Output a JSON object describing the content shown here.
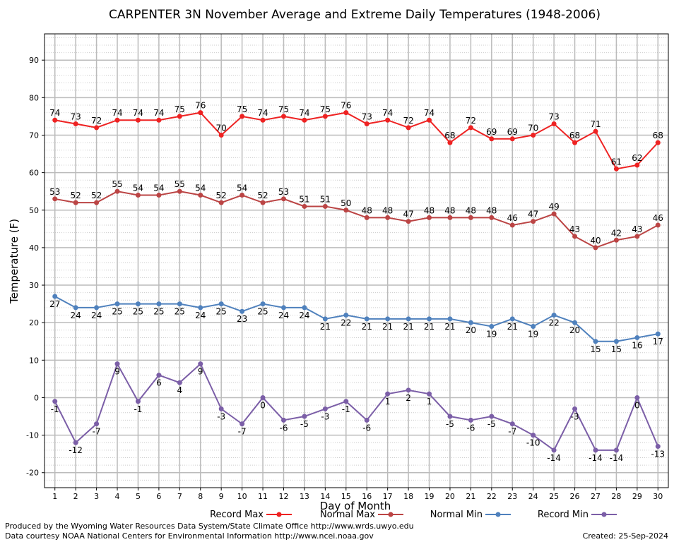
{
  "chart_data": {
    "type": "line",
    "title": "CARPENTER 3N November Average and Extreme Daily Temperatures (1948-2006)",
    "xlabel": "Day of Month",
    "ylabel": "Temperature (F)",
    "xlim": [
      0.5,
      30.5
    ],
    "ylim": [
      -24,
      97
    ],
    "x_ticks": [
      1,
      2,
      3,
      4,
      5,
      6,
      7,
      8,
      9,
      10,
      11,
      12,
      13,
      14,
      15,
      16,
      17,
      18,
      19,
      20,
      21,
      22,
      23,
      24,
      25,
      26,
      27,
      28,
      29,
      30
    ],
    "y_ticks": [
      -20,
      -10,
      0,
      10,
      20,
      30,
      40,
      50,
      60,
      70,
      80,
      90
    ],
    "grid": true,
    "x": [
      1,
      2,
      3,
      4,
      5,
      6,
      7,
      8,
      9,
      10,
      11,
      12,
      13,
      14,
      15,
      16,
      17,
      18,
      19,
      20,
      21,
      22,
      23,
      24,
      25,
      26,
      27,
      28,
      29,
      30
    ],
    "series": [
      {
        "name": "Record Max",
        "color": "#ee2222",
        "label_position": "above",
        "values": [
          74,
          73,
          72,
          74,
          74,
          74,
          75,
          76,
          70,
          75,
          74,
          75,
          74,
          75,
          76,
          73,
          74,
          72,
          74,
          68,
          72,
          69,
          69,
          70,
          73,
          68,
          71,
          61,
          62,
          68
        ]
      },
      {
        "name": "Normal Max",
        "color": "#bb4444",
        "label_position": "above",
        "values": [
          53,
          52,
          52,
          55,
          54,
          54,
          55,
          54,
          52,
          54,
          52,
          53,
          51,
          51,
          50,
          48,
          48,
          47,
          48,
          48,
          48,
          48,
          46,
          47,
          49,
          43,
          40,
          42,
          43,
          46
        ]
      },
      {
        "name": "Normal Min",
        "color": "#4f81bd",
        "label_position": "below",
        "values": [
          27,
          24,
          24,
          25,
          25,
          25,
          25,
          24,
          25,
          23,
          25,
          24,
          24,
          21,
          22,
          21,
          21,
          21,
          21,
          21,
          20,
          19,
          21,
          19,
          22,
          20,
          15,
          15,
          16,
          17
        ]
      },
      {
        "name": "Record Min",
        "color": "#7b5ea7",
        "label_position": "below",
        "values": [
          -1,
          -12,
          -7,
          9,
          -1,
          6,
          4,
          9,
          -3,
          -7,
          0,
          -6,
          -5,
          -3,
          -1,
          -6,
          1,
          2,
          1,
          -5,
          -6,
          -5,
          -7,
          -10,
          -14,
          -3,
          -14,
          -14,
          0,
          -13
        ]
      }
    ],
    "legend_position": "bottom"
  },
  "footer": {
    "line1": "Produced by the Wyoming Water Resources Data System/State Climate Office http://www.wrds.uwyo.edu",
    "line2": "Data courtesy NOAA National Centers for Environmental Information http://www.ncei.noaa.gov",
    "created": "Created:  25-Sep-2024"
  }
}
